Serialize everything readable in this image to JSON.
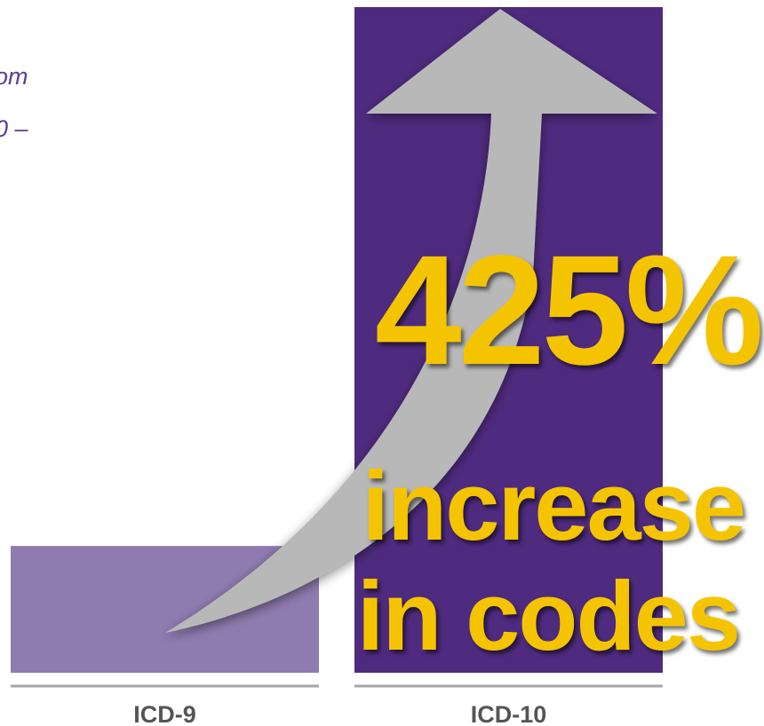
{
  "intro": {
    "line1": "om",
    "line2": "0 –"
  },
  "callout": {
    "percent": "425%",
    "line2": "increase",
    "line3": "in codes"
  },
  "colors": {
    "icd9_bar": "#8f7bb0",
    "icd10_bar": "#4f2b7f",
    "arrow": "#b8b8b8",
    "callout_text": "#f5c400",
    "intro_text": "#5a3d91",
    "axis_line": "#a6a6a6",
    "tick_text": "#555555"
  },
  "chart_data": {
    "type": "bar",
    "categories": [
      "ICD-9",
      "ICD-10"
    ],
    "values": [
      1,
      5.25
    ],
    "annotations": [
      "425% increase in codes"
    ],
    "arrow": "upward arrow from ICD-9 to ICD-10",
    "grid": false
  }
}
